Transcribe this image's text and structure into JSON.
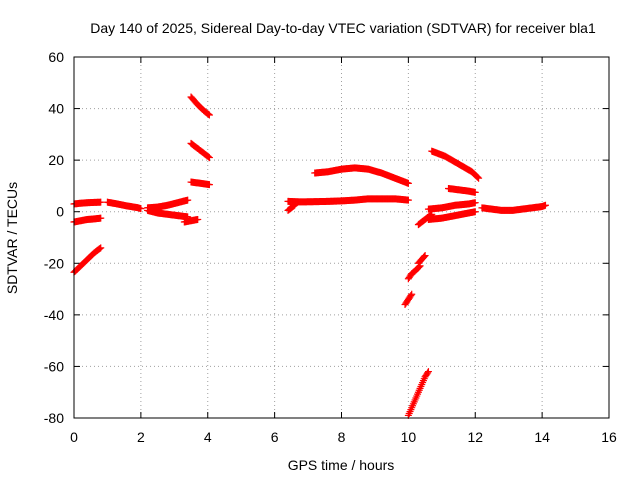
{
  "chart_data": {
    "type": "scatter",
    "title": "Day 140 of 2025, Sidereal Day-to-day VTEC variation (SDTVAR) for receiver bla1",
    "xlabel": "GPS time / hours",
    "ylabel": "SDTVAR / TECUs",
    "xlim": [
      0,
      16
    ],
    "ylim": [
      -80,
      60
    ],
    "xticks": [
      0,
      2,
      4,
      6,
      8,
      10,
      12,
      14,
      16
    ],
    "yticks": [
      -80,
      -60,
      -40,
      -20,
      0,
      20,
      40,
      60
    ],
    "grid": true,
    "marker": "plus",
    "color": "#ff0000",
    "series": [
      {
        "name": "s1",
        "x": [
          0.0,
          0.2,
          0.4,
          0.6,
          0.8
        ],
        "y": [
          3.0,
          3.3,
          3.5,
          3.6,
          3.7
        ]
      },
      {
        "name": "s2",
        "x": [
          0.0,
          0.2,
          0.4,
          0.6,
          0.8
        ],
        "y": [
          -4.0,
          -3.5,
          -3.0,
          -2.8,
          -2.5
        ]
      },
      {
        "name": "s3",
        "x": [
          0.0,
          0.2,
          0.4,
          0.6,
          0.8
        ],
        "y": [
          -23.5,
          -21.0,
          -18.5,
          -16.0,
          -14.0
        ]
      },
      {
        "name": "s4",
        "x": [
          1.0,
          1.3,
          1.6,
          1.9,
          2.0
        ],
        "y": [
          3.7,
          3.0,
          2.2,
          1.6,
          1.2
        ]
      },
      {
        "name": "s5",
        "x": [
          2.2,
          2.5,
          2.8,
          3.1,
          3.4
        ],
        "y": [
          1.5,
          1.8,
          2.5,
          3.5,
          4.5
        ]
      },
      {
        "name": "s6",
        "x": [
          2.2,
          2.5,
          2.8,
          3.1,
          3.4
        ],
        "y": [
          0.5,
          -0.5,
          -1.0,
          -1.5,
          -2.0
        ]
      },
      {
        "name": "s7",
        "x": [
          3.3,
          3.5,
          3.7
        ],
        "y": [
          -4.0,
          -3.5,
          -3.0
        ]
      },
      {
        "name": "s8",
        "x": [
          3.5,
          3.7,
          3.9,
          4.05
        ],
        "y": [
          44.5,
          41.5,
          39.0,
          37.5
        ]
      },
      {
        "name": "s9",
        "x": [
          3.5,
          3.7,
          3.9,
          4.05
        ],
        "y": [
          26.5,
          24.5,
          22.5,
          21.0
        ]
      },
      {
        "name": "s10",
        "x": [
          3.5,
          3.8,
          4.05
        ],
        "y": [
          11.5,
          11.0,
          10.5
        ]
      },
      {
        "name": "s11",
        "x": [
          6.4,
          6.8,
          7.2,
          7.6,
          8.0,
          8.4,
          8.8,
          9.2,
          9.6,
          10.0
        ],
        "y": [
          4.0,
          3.8,
          3.9,
          4.0,
          4.2,
          4.5,
          5.0,
          5.0,
          5.0,
          4.5
        ]
      },
      {
        "name": "s12",
        "x": [
          6.4,
          6.5,
          6.6
        ],
        "y": [
          0.5,
          1.5,
          2.5
        ]
      },
      {
        "name": "s13",
        "x": [
          7.2,
          7.6,
          8.0,
          8.4,
          8.8,
          9.2,
          9.6,
          10.0
        ],
        "y": [
          15.0,
          15.5,
          16.5,
          17.0,
          16.5,
          15.0,
          13.0,
          11.0
        ]
      },
      {
        "name": "s14",
        "x": [
          9.9,
          10.0,
          10.1
        ],
        "y": [
          -36.0,
          -34.0,
          -32.0
        ]
      },
      {
        "name": "s15",
        "x": [
          10.0,
          10.1,
          10.2,
          10.35
        ],
        "y": [
          -26.0,
          -24.0,
          -23.0,
          -21.0
        ]
      },
      {
        "name": "s16",
        "x": [
          10.3,
          10.4,
          10.5
        ],
        "y": [
          -20.0,
          -18.5,
          -17.0
        ]
      },
      {
        "name": "s17",
        "x": [
          10.0,
          10.1,
          10.2,
          10.3,
          10.4,
          10.5,
          10.6
        ],
        "y": [
          -79.0,
          -76.0,
          -73.0,
          -70.0,
          -67.0,
          -64.0,
          -62.0
        ]
      },
      {
        "name": "s18",
        "x": [
          10.3,
          10.5,
          10.7
        ],
        "y": [
          -5.0,
          -3.0,
          -1.0
        ]
      },
      {
        "name": "s19",
        "x": [
          10.7,
          11.1,
          11.5,
          11.9,
          12.1
        ],
        "y": [
          23.5,
          21.5,
          18.5,
          15.5,
          13.0
        ]
      },
      {
        "name": "s20",
        "x": [
          11.2,
          11.5,
          11.8,
          12.0
        ],
        "y": [
          9.0,
          8.5,
          8.0,
          7.5
        ]
      },
      {
        "name": "s21",
        "x": [
          10.6,
          11.0,
          11.4,
          11.8,
          12.0
        ],
        "y": [
          1.0,
          1.5,
          2.5,
          3.0,
          3.5
        ]
      },
      {
        "name": "s22",
        "x": [
          10.6,
          11.0,
          11.4,
          11.8,
          12.0
        ],
        "y": [
          -3.0,
          -2.5,
          -1.5,
          -0.5,
          0.0
        ]
      },
      {
        "name": "s23",
        "x": [
          12.2,
          12.5,
          12.8,
          13.1,
          13.4,
          13.7,
          14.0,
          14.1
        ],
        "y": [
          1.5,
          1.0,
          0.5,
          0.5,
          1.0,
          1.5,
          2.0,
          2.5
        ]
      }
    ]
  }
}
